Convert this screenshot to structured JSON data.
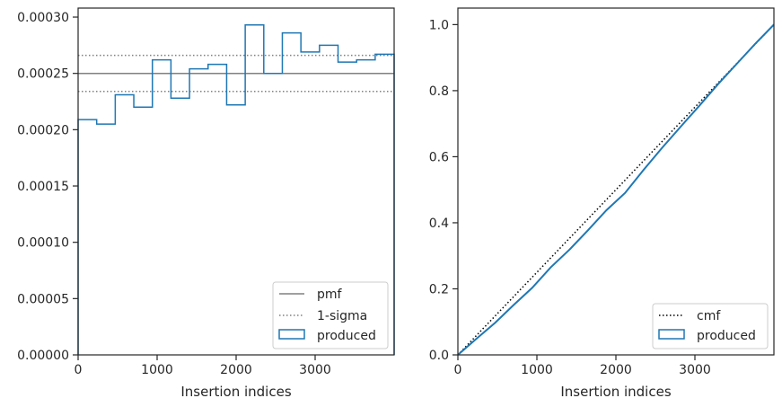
{
  "colors": {
    "produced": "#1f77b4",
    "pmf": "#808080",
    "sigma": "#808080",
    "cmf": "#000000",
    "axes": "#262626"
  },
  "chart_data": [
    {
      "type": "histogram",
      "xlabel": "Insertion indices",
      "ylabel": "",
      "xlim": [
        0,
        4000
      ],
      "ylim": [
        0,
        0.000308
      ],
      "xticks": [
        0,
        1000,
        2000,
        3000
      ],
      "xtick_labels": [
        "0",
        "1000",
        "2000",
        "3000"
      ],
      "yticks": [
        0,
        5e-05,
        0.0001,
        0.00015,
        0.0002,
        0.00025,
        0.0003
      ],
      "ytick_labels": [
        "0.00000",
        "0.00005",
        "0.00010",
        "0.00015",
        "0.00020",
        "0.00025",
        "0.00030"
      ],
      "legend": {
        "position": "lower right",
        "entries": [
          "pmf",
          "1-sigma",
          "produced"
        ]
      },
      "pmf": 0.00025,
      "sigma_band": [
        0.000234,
        0.000266
      ],
      "bin_edges": [
        0,
        235,
        470,
        705,
        940,
        1175,
        1410,
        1645,
        1880,
        2115,
        2350,
        2585,
        2820,
        3055,
        3290,
        3525,
        3760,
        4000
      ],
      "series": [
        {
          "name": "produced",
          "values": [
            0.000209,
            0.000205,
            0.000231,
            0.00022,
            0.000262,
            0.000228,
            0.000254,
            0.000258,
            0.000222,
            0.000293,
            0.00025,
            0.000286,
            0.000269,
            0.000275,
            0.00026,
            0.000262,
            0.000267
          ]
        }
      ]
    },
    {
      "type": "line",
      "xlabel": "Insertion indices",
      "ylabel": "",
      "xlim": [
        0,
        4000
      ],
      "ylim": [
        0,
        1.05
      ],
      "xticks": [
        0,
        1000,
        2000,
        3000
      ],
      "xtick_labels": [
        "0",
        "1000",
        "2000",
        "3000"
      ],
      "yticks": [
        0,
        0.2,
        0.4,
        0.6,
        0.8,
        1.0
      ],
      "ytick_labels": [
        "0.0",
        "0.2",
        "0.4",
        "0.6",
        "0.8",
        "1.0"
      ],
      "legend": {
        "position": "lower right",
        "entries": [
          "cmf",
          "produced"
        ]
      },
      "series": [
        {
          "name": "cmf",
          "x": [
            0,
            4000
          ],
          "values": [
            0,
            1.0
          ]
        },
        {
          "name": "produced",
          "x": [
            0,
            235,
            470,
            705,
            940,
            1175,
            1410,
            1645,
            1880,
            2115,
            2350,
            2585,
            2820,
            3055,
            3290,
            3525,
            3760,
            4000
          ],
          "values": [
            0,
            0.049,
            0.097,
            0.151,
            0.203,
            0.265,
            0.318,
            0.377,
            0.438,
            0.49,
            0.56,
            0.627,
            0.691,
            0.754,
            0.819,
            0.88,
            0.941,
            1.0
          ]
        }
      ]
    }
  ]
}
